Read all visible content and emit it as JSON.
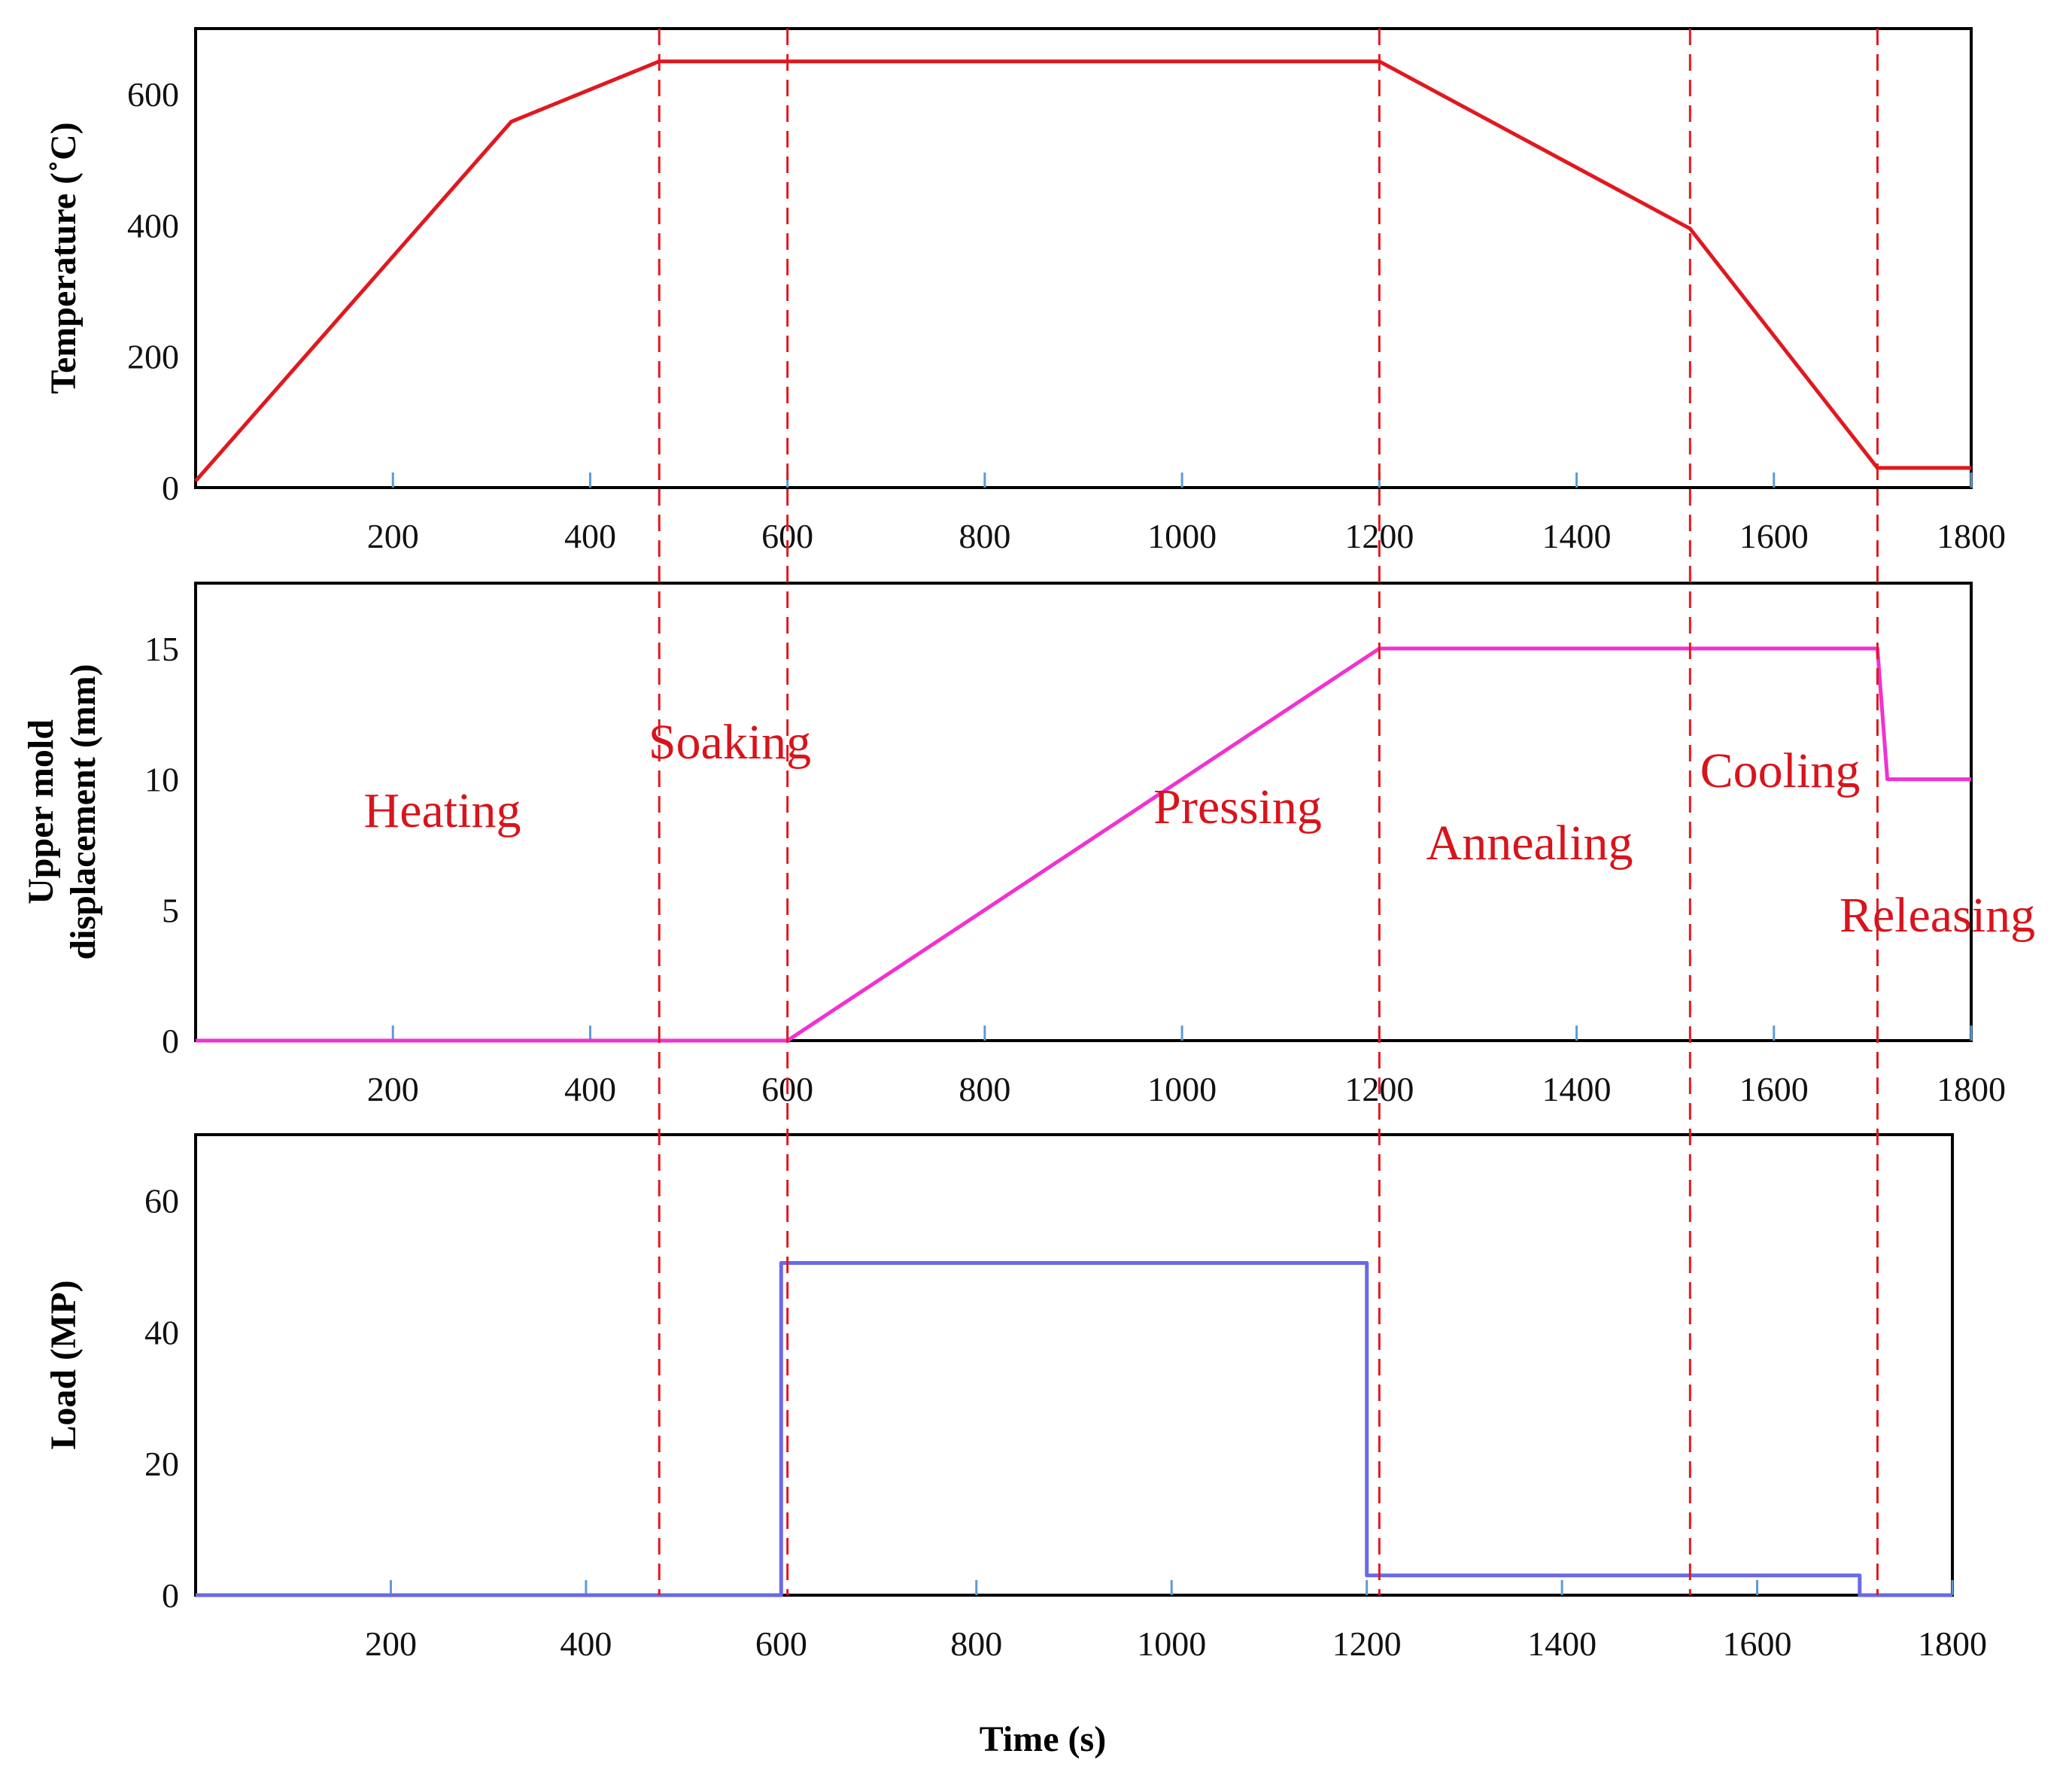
{
  "chart_data": [
    {
      "type": "line",
      "id": "temperature",
      "xlabel": "",
      "ylabel": "Temperature (˚C)",
      "xlim": [
        0,
        1800
      ],
      "ylim": [
        0,
        700
      ],
      "x_ticks": [
        200,
        400,
        600,
        800,
        1000,
        1200,
        1400,
        1600,
        1800
      ],
      "y_ticks": [
        0,
        200,
        400,
        600
      ],
      "series": [
        {
          "color": "#e0191f",
          "x": [
            0,
            320,
            470,
            600,
            1200,
            1515,
            1705,
            1800
          ],
          "y": [
            10,
            558,
            650,
            650,
            650,
            395,
            30,
            30
          ]
        }
      ]
    },
    {
      "type": "line",
      "id": "displacement",
      "xlabel": "",
      "ylabel": "Upper mold displacement (mm)",
      "ylabel_lines": [
        "Upper mold",
        "displacement (mm)"
      ],
      "xlim": [
        0,
        1800
      ],
      "ylim": [
        0,
        17.5
      ],
      "x_ticks": [
        200,
        400,
        600,
        800,
        1000,
        1200,
        1400,
        1600,
        1800
      ],
      "y_ticks": [
        0,
        5,
        10,
        15
      ],
      "series": [
        {
          "color": "#f032d2",
          "x": [
            0,
            600,
            1200,
            1705,
            1715,
            1800
          ],
          "y": [
            0,
            0,
            15,
            15,
            10,
            10
          ]
        }
      ]
    },
    {
      "type": "line",
      "id": "load",
      "xlabel": "Time (s)",
      "ylabel": "Load (MP)",
      "xlim": [
        0,
        1800
      ],
      "ylim": [
        0,
        70
      ],
      "x_ticks": [
        200,
        400,
        600,
        800,
        1000,
        1200,
        1400,
        1600,
        1800
      ],
      "y_ticks": [
        0,
        20,
        40,
        60
      ],
      "series": [
        {
          "color": "#6a6ae6",
          "x": [
            0,
            600,
            600,
            1200,
            1200,
            1705,
            1705,
            1800
          ],
          "y": [
            0,
            0,
            50.5,
            50.5,
            3,
            3,
            0,
            0
          ]
        }
      ]
    }
  ],
  "phase_boundaries": [
    470,
    600,
    1200,
    1515,
    1705
  ],
  "phase_labels": [
    "Heating",
    "Soaking",
    "Pressing",
    "Annealing",
    "Cooling",
    "Releasing"
  ],
  "colors": {
    "phase_line": "#e0191f",
    "phase_text": "#d8141c",
    "tick": "#5b9bd5",
    "frame": "#000000"
  }
}
